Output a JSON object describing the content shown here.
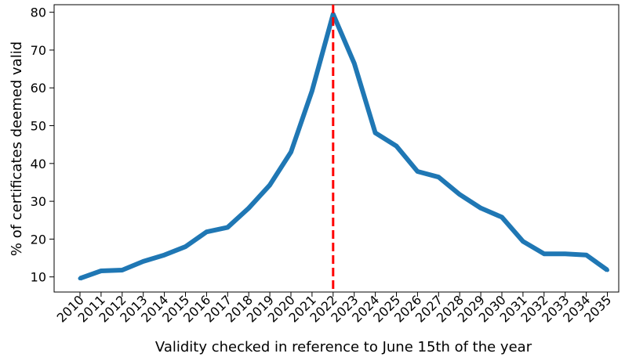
{
  "chart_data": {
    "type": "line",
    "xlabel": "Validity checked in reference to June 15th of the year",
    "ylabel": "% of certificates deemed valid",
    "x": [
      "2010",
      "2011",
      "2012",
      "2013",
      "2014",
      "2015",
      "2016",
      "2017",
      "2018",
      "2019",
      "2020",
      "2021",
      "2022",
      "2023",
      "2024",
      "2025",
      "2026",
      "2027",
      "2028",
      "2029",
      "2030",
      "2031",
      "2032",
      "2033",
      "2034",
      "2035"
    ],
    "values": [
      9.6,
      11.6,
      11.8,
      14.1,
      15.8,
      18.0,
      21.9,
      23.1,
      28.2,
      34.3,
      43.0,
      59.2,
      79.5,
      66.5,
      48.1,
      44.6,
      37.9,
      36.4,
      31.8,
      28.2,
      25.8,
      19.4,
      16.1,
      16.1,
      15.8,
      11.8
    ],
    "ylim": [
      6,
      82
    ],
    "yticks": [
      10,
      20,
      30,
      40,
      50,
      60,
      70,
      80
    ],
    "reference_line": {
      "x": "2022",
      "color": "#ff0000",
      "style": "dashed"
    },
    "line_color": "#1f77b4",
    "grid": false
  }
}
